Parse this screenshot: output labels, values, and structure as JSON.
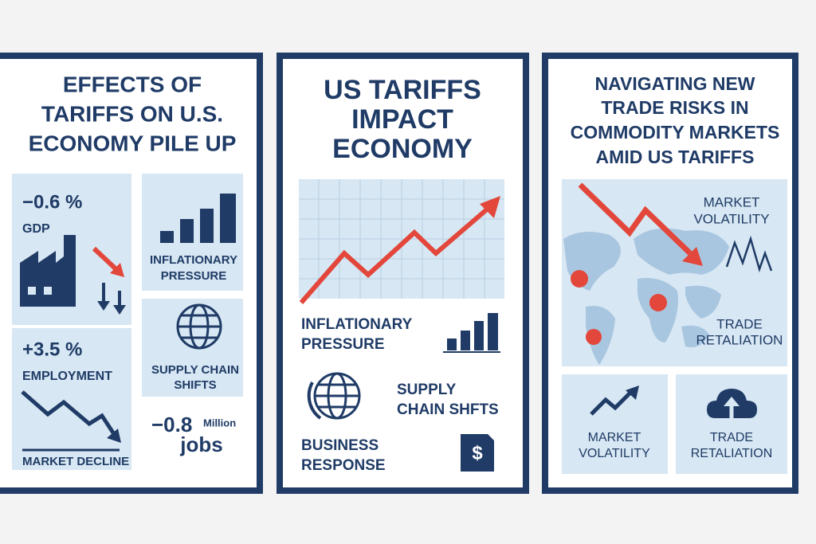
{
  "panels": [
    {
      "title_lines": [
        "EFFECTS OF",
        "TARIFFS ON U.S.",
        "ECONOMY PILE UP"
      ],
      "gdp": {
        "value": "−0.6 %",
        "label": "GDP"
      },
      "inflation": [
        "INFLATIONARY",
        "PRESSURE"
      ],
      "employment": {
        "value": "+3.5 %",
        "label": "EMPLOYMENT",
        "note": "MARKET DECLINE"
      },
      "supply_chain": [
        "SUPPLY CHAIN",
        "SHIFTS"
      ],
      "jobs": {
        "value": "−0.8",
        "unit": "Million",
        "label": "jobs"
      }
    },
    {
      "title_lines": [
        "US TARIFFS",
        "IMPACT",
        "ECONOMY"
      ],
      "inflation": [
        "INFLATIONARY",
        "PRESSURE"
      ],
      "supply_chain": [
        "SUPPLY",
        "CHAIN SHFTS"
      ],
      "business": [
        "BUSINESS",
        "RESPONSE"
      ]
    },
    {
      "title_lines": [
        "NAVIGATING NEW",
        "TRADE RISKS IN",
        "COMMODITY MARKETS",
        "AMID US TARIFFS"
      ],
      "map_volatility": [
        "MARKET",
        "VOLATILITY"
      ],
      "map_retaliation": [
        "TRADE",
        "RETALIATION"
      ],
      "card_volatility": [
        "MARKET",
        "VOLATILITY"
      ],
      "card_retaliation": [
        "TRADE",
        "RETALIATION"
      ]
    }
  ]
}
